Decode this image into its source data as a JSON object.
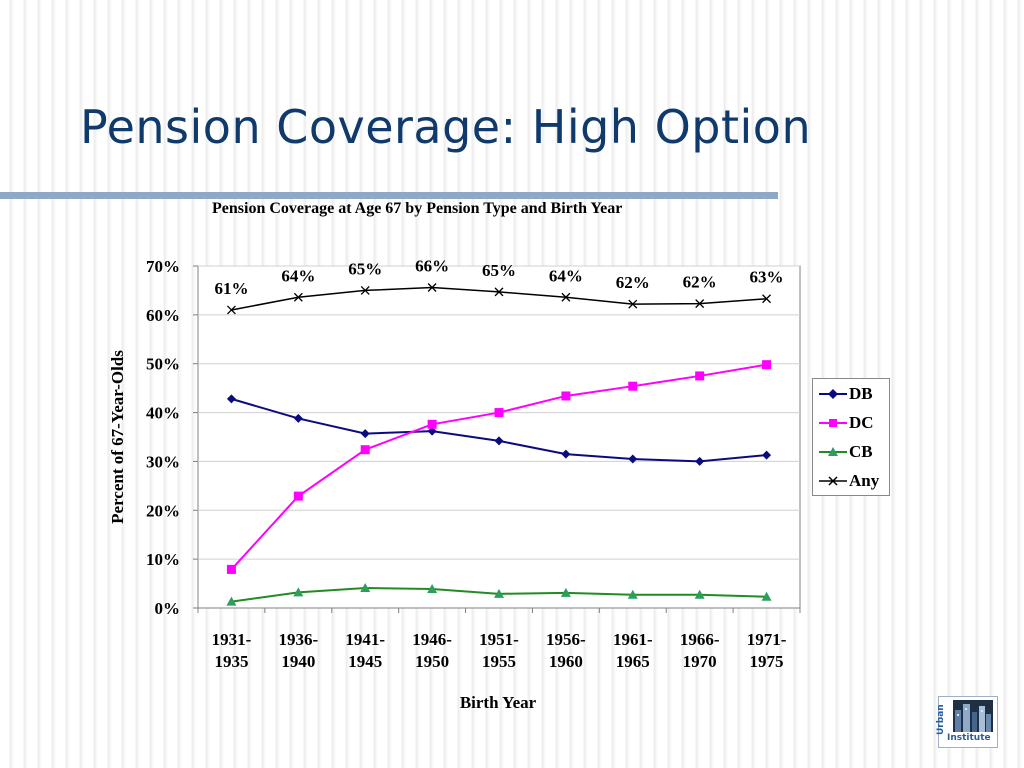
{
  "slide": {
    "title": "Pension Coverage: High Option",
    "logo": {
      "side_text": "Urban",
      "bottom_text": "Institute"
    }
  },
  "colors": {
    "title": "#0f3a6b",
    "rule": "#8ea9c8",
    "DB": "#0b0b80",
    "DC": "#ff00ff",
    "CB": "#228b22",
    "Any": "#000000"
  },
  "chart_data": {
    "type": "line",
    "title": "Pension Coverage at Age 67 by Pension Type and Birth Year",
    "xlabel": "Birth Year",
    "ylabel": "Percent of 67-Year-Olds",
    "categories": [
      [
        "1931-",
        "1935"
      ],
      [
        "1936-",
        "1940"
      ],
      [
        "1941-",
        "1945"
      ],
      [
        "1946-",
        "1950"
      ],
      [
        "1951-",
        "1955"
      ],
      [
        "1956-",
        "1960"
      ],
      [
        "1961-",
        "1965"
      ],
      [
        "1966-",
        "1970"
      ],
      [
        "1971-",
        "1975"
      ]
    ],
    "ylim": [
      0,
      70
    ],
    "yticks": [
      "0%",
      "10%",
      "20%",
      "30%",
      "40%",
      "50%",
      "60%",
      "70%"
    ],
    "grid": true,
    "legend_position": "right",
    "series": [
      {
        "name": "DB",
        "marker": "diamond",
        "values": [
          42.8,
          38.8,
          35.7,
          36.2,
          34.2,
          31.5,
          30.5,
          30.0,
          31.3
        ]
      },
      {
        "name": "DC",
        "marker": "square",
        "values": [
          7.9,
          22.9,
          32.4,
          37.6,
          40.0,
          43.4,
          45.4,
          47.5,
          49.8
        ]
      },
      {
        "name": "CB",
        "marker": "triangle",
        "values": [
          1.3,
          3.2,
          4.1,
          3.9,
          2.9,
          3.1,
          2.7,
          2.7,
          2.3
        ]
      },
      {
        "name": "Any",
        "marker": "x",
        "values": [
          61.0,
          63.6,
          65.0,
          65.6,
          64.7,
          63.6,
          62.2,
          62.3,
          63.3
        ],
        "data_labels": [
          "61%",
          "64%",
          "65%",
          "66%",
          "65%",
          "64%",
          "62%",
          "62%",
          "63%"
        ]
      }
    ]
  }
}
